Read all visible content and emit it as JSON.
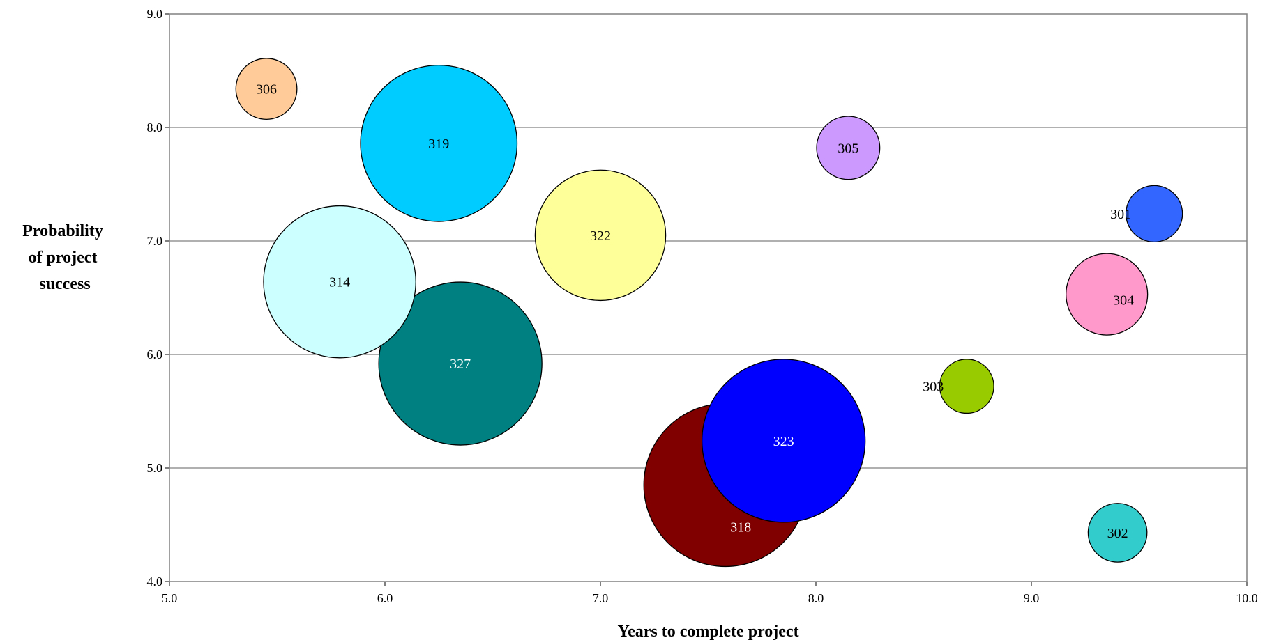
{
  "chart_data": {
    "type": "bubble",
    "xlabel": "Years to complete project",
    "ylabel": [
      "Probability",
      "of project",
      "success"
    ],
    "xlim": [
      5.0,
      10.0
    ],
    "ylim": [
      4.0,
      9.0
    ],
    "xticks": [
      "5.0",
      "6.0",
      "7.0",
      "8.0",
      "9.0",
      "10.0"
    ],
    "yticks": [
      "4.0",
      "5.0",
      "6.0",
      "7.0",
      "8.0",
      "9.0"
    ],
    "grid": "horizontal",
    "bubbles": [
      {
        "label": "318",
        "x": 7.58,
        "y": 4.85,
        "size": 1.0,
        "color": "#800000",
        "label_color": "#ffffff"
      },
      {
        "label": "323",
        "x": 7.85,
        "y": 5.24,
        "size": 1.0,
        "color": "#0000ff",
        "label_color": "#ffffff"
      },
      {
        "label": "327",
        "x": 6.35,
        "y": 5.92,
        "size": 1.0,
        "color": "#008080",
        "label_color": "#ffffff"
      },
      {
        "label": "319",
        "x": 6.25,
        "y": 7.86,
        "size": 0.92,
        "color": "#00ccff",
        "label_color": "#000000"
      },
      {
        "label": "314",
        "x": 5.79,
        "y": 6.64,
        "size": 0.87,
        "color": "#ccffff",
        "label_color": "#000000"
      },
      {
        "label": "322",
        "x": 7.0,
        "y": 7.05,
        "size": 0.64,
        "color": "#ffff99",
        "label_color": "#000000"
      },
      {
        "label": "304",
        "x": 9.35,
        "y": 6.53,
        "size": 0.25,
        "color": "#ff99cc",
        "label_color": "#000000"
      },
      {
        "label": "305",
        "x": 8.15,
        "y": 7.82,
        "size": 0.15,
        "color": "#cc99ff",
        "label_color": "#000000"
      },
      {
        "label": "306",
        "x": 5.45,
        "y": 8.34,
        "size": 0.14,
        "color": "#ffcc99",
        "label_color": "#000000"
      },
      {
        "label": "302",
        "x": 9.4,
        "y": 4.43,
        "size": 0.13,
        "color": "#33cccc",
        "label_color": "#000000"
      },
      {
        "label": "301",
        "x": 9.57,
        "y": 7.24,
        "size": 0.12,
        "color": "#3366ff",
        "label_color": "#000000"
      },
      {
        "label": "303",
        "x": 8.7,
        "y": 5.72,
        "size": 0.11,
        "color": "#99cc00",
        "label_color": "#000000"
      }
    ]
  }
}
